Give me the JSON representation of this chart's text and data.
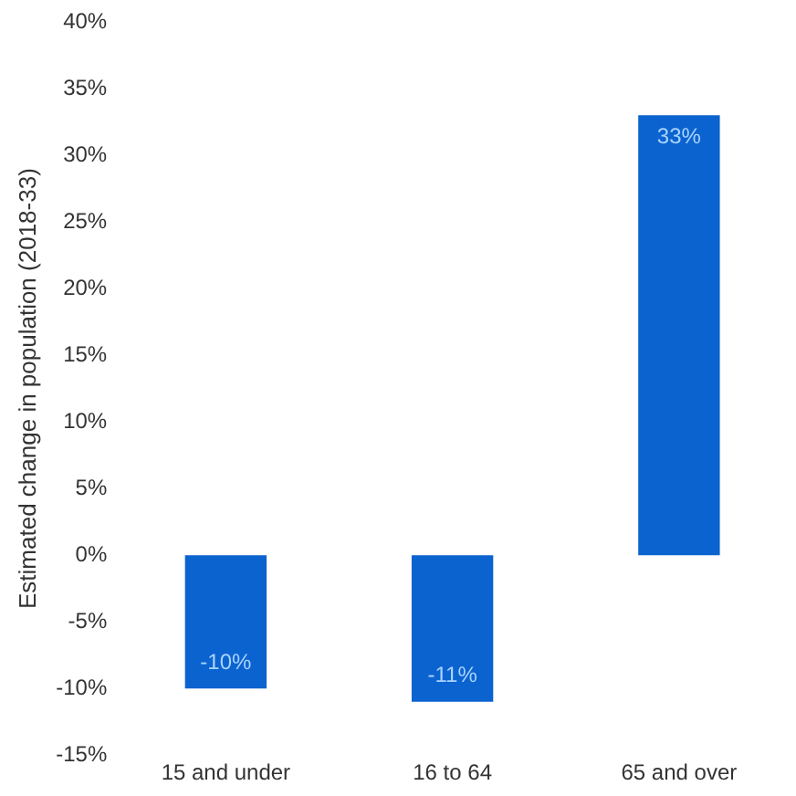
{
  "chart_data": {
    "type": "bar",
    "ylabel": "Estimated change in population (2018-33)",
    "categories": [
      "15 and under",
      "16 to 64",
      "65 and over"
    ],
    "values": [
      -10,
      -11,
      33
    ],
    "color": "#0b63cf",
    "value_labels": [
      "-10%",
      "-11%",
      "33%"
    ],
    "ylim": [
      -15,
      40
    ],
    "yticks": [
      {
        "value": -15,
        "label": "-15%"
      },
      {
        "value": -10,
        "label": "-10%"
      },
      {
        "value": -5,
        "label": "-5%"
      },
      {
        "value": 0,
        "label": "0%"
      },
      {
        "value": 5,
        "label": "5%"
      },
      {
        "value": 10,
        "label": "10%"
      },
      {
        "value": 15,
        "label": "15%"
      },
      {
        "value": 20,
        "label": "20%"
      },
      {
        "value": 25,
        "label": "25%"
      },
      {
        "value": 30,
        "label": "30%"
      },
      {
        "value": 35,
        "label": "35%"
      },
      {
        "value": 40,
        "label": "40%"
      }
    ],
    "grid": false,
    "legend": false
  }
}
